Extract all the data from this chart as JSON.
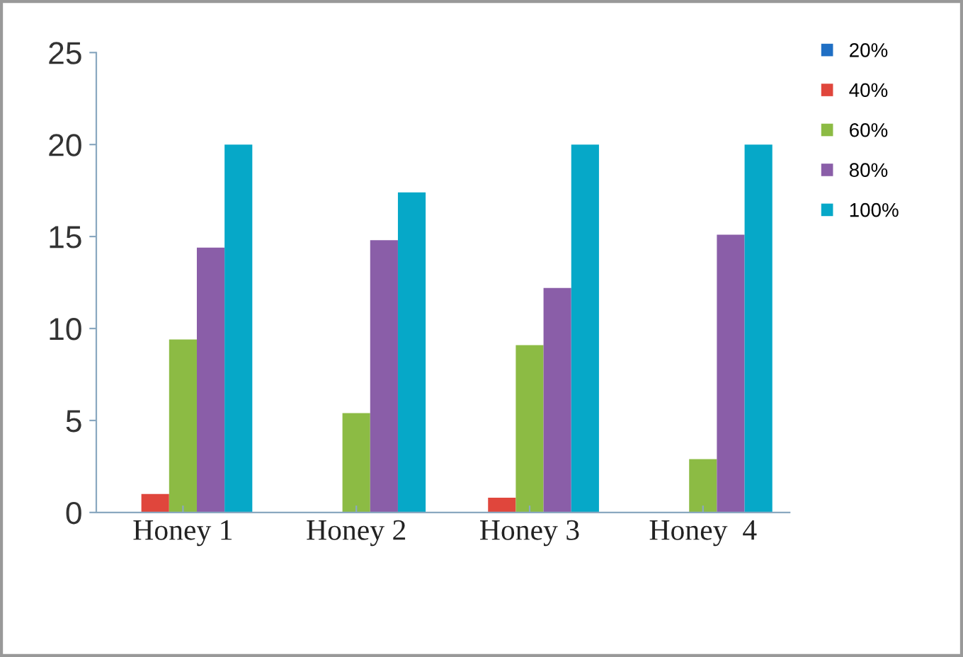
{
  "chart_data": {
    "type": "bar",
    "categories": [
      "Honey 1",
      "Honey 2",
      "Honey 3",
      "Honey  4"
    ],
    "series": [
      {
        "name": "20%",
        "color": "#1f6fc4",
        "values": [
          0,
          0,
          0,
          0
        ]
      },
      {
        "name": "40%",
        "color": "#e0463c",
        "values": [
          1.0,
          0,
          0.8,
          0
        ]
      },
      {
        "name": "60%",
        "color": "#8cbb44",
        "values": [
          9.4,
          5.4,
          9.1,
          2.9
        ]
      },
      {
        "name": "80%",
        "color": "#8a5ea8",
        "values": [
          14.4,
          14.8,
          12.2,
          15.1
        ]
      },
      {
        "name": "100%",
        "color": "#06a8c8",
        "values": [
          20,
          17.4,
          20,
          20
        ]
      }
    ],
    "ylim": [
      0,
      25
    ],
    "yticks": [
      0,
      5,
      10,
      15,
      20,
      25
    ],
    "grid": false,
    "legend": "top right"
  }
}
